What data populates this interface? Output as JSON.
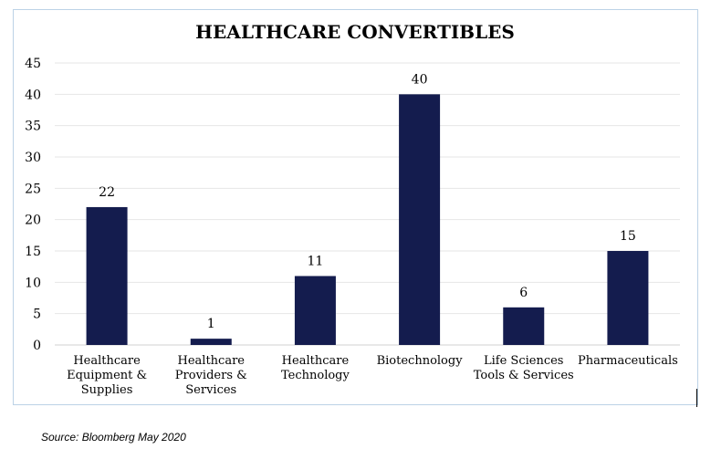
{
  "chart_data": {
    "type": "bar",
    "title": "HEALTHCARE CONVERTIBLES",
    "categories": [
      [
        "Healthcare",
        "Equipment &",
        "Supplies"
      ],
      [
        "Healthcare",
        "Providers  &",
        "Services"
      ],
      [
        "Healthcare",
        "Technology"
      ],
      [
        "Biotechnology"
      ],
      [
        "Life Sciences",
        "Tools & Services"
      ],
      [
        "Pharmaceuticals"
      ]
    ],
    "values": [
      22,
      1,
      11,
      40,
      6,
      15
    ],
    "data_labels": [
      "22",
      "1",
      "11",
      "40",
      "6",
      "15"
    ],
    "ylim": [
      0,
      45
    ],
    "yticks": [
      0,
      5,
      10,
      15,
      20,
      25,
      30,
      35,
      40,
      45
    ],
    "grid": true,
    "bar_color": "#141c4e",
    "grid_color": "#e6e6e6"
  },
  "source": "Source: Bloomberg May 2020"
}
